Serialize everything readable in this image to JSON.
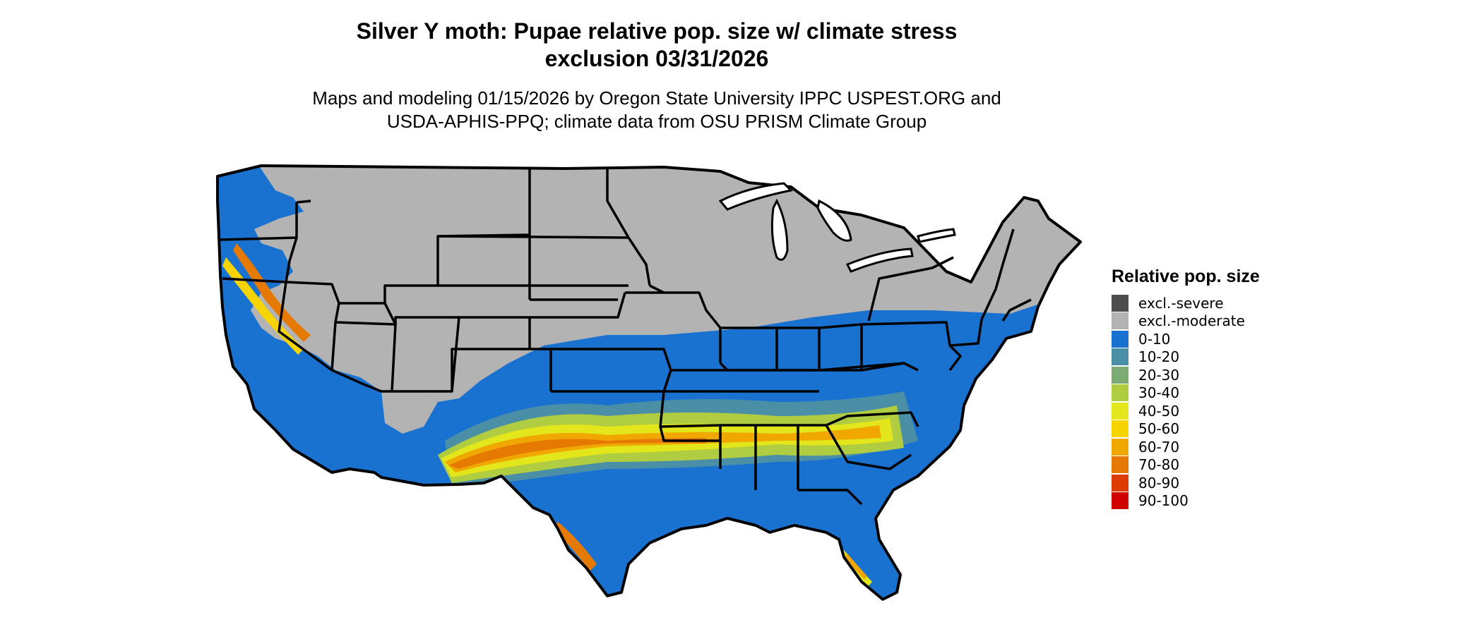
{
  "title_line1": "Silver Y moth: Pupae relative pop. size w/ climate stress",
  "title_line2": "exclusion 03/31/2026",
  "subtitle_line1": "Maps and modeling 01/15/2026 by Oregon State University IPPC USPEST.ORG and",
  "subtitle_line2": "USDA-APHIS-PPQ; climate data from OSU PRISM Climate Group",
  "legend": {
    "title": "Relative pop. size",
    "items": [
      {
        "label": "excl.-severe",
        "color": "#4d4d4d"
      },
      {
        "label": "excl.-moderate",
        "color": "#b3b3b3"
      },
      {
        "label": "0-10",
        "color": "#1a72d0"
      },
      {
        "label": "10-20",
        "color": "#4a8fa6"
      },
      {
        "label": "20-30",
        "color": "#7dab74"
      },
      {
        "label": "30-40",
        "color": "#b0cc40"
      },
      {
        "label": "40-50",
        "color": "#e2e61a"
      },
      {
        "label": "50-60",
        "color": "#f6d400"
      },
      {
        "label": "60-70",
        "color": "#f0a800"
      },
      {
        "label": "70-80",
        "color": "#e67a00"
      },
      {
        "label": "80-90",
        "color": "#dc3c00"
      },
      {
        "label": "90-100",
        "color": "#d00000"
      }
    ]
  }
}
